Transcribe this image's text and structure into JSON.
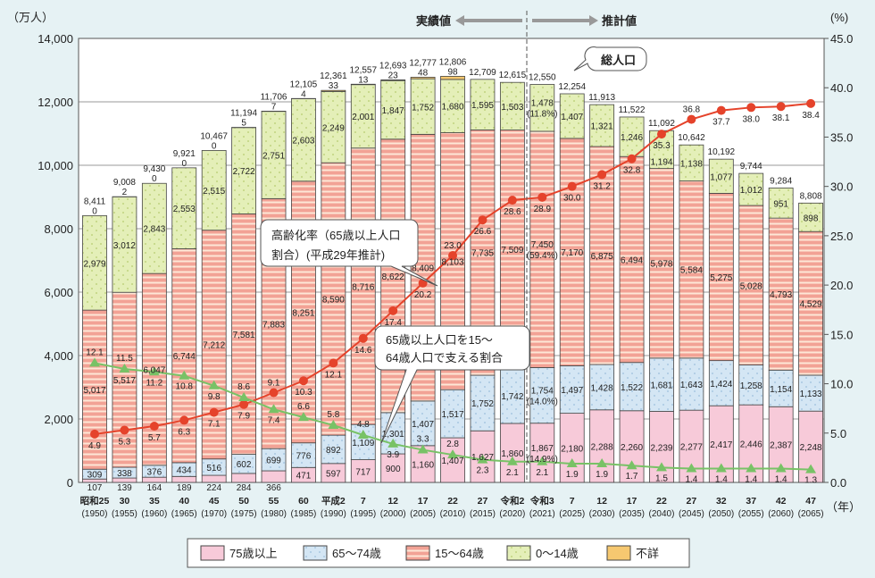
{
  "chart_data": {
    "type": "bar",
    "stacked": true,
    "left_axis": {
      "unit_label": "（万人）",
      "ylim": [
        0,
        14000
      ],
      "ticks": [
        "0",
        "2,000",
        "4,000",
        "6,000",
        "8,000",
        "10,000",
        "12,000",
        "14,000"
      ]
    },
    "right_axis": {
      "unit_label": "(%)",
      "ylim": [
        0,
        45
      ],
      "ticks": [
        "0.0",
        "5.0",
        "10.0",
        "15.0",
        "20.0",
        "25.0",
        "30.0",
        "35.0",
        "40.0",
        "45.0"
      ]
    },
    "x_unit_label": "（年）",
    "categories": [
      "昭和25",
      "30",
      "35",
      "40",
      "45",
      "50",
      "55",
      "60",
      "平成2",
      "7",
      "12",
      "17",
      "22",
      "27",
      "令和2",
      "令和3",
      "7",
      "12",
      "17",
      "22",
      "27",
      "32",
      "37",
      "42",
      "47"
    ],
    "categories_western": [
      "(1950)",
      "(1955)",
      "(1960)",
      "(1965)",
      "(1970)",
      "(1975)",
      "(1980)",
      "(1985)",
      "(1990)",
      "(1995)",
      "(2000)",
      "(2005)",
      "(2010)",
      "(2015)",
      "(2020)",
      "(2021)",
      "(2025)",
      "(2030)",
      "(2035)",
      "(2040)",
      "(2045)",
      "(2050)",
      "(2055)",
      "(2060)",
      "(2065)"
    ],
    "totals": [
      "8,411",
      "9,008",
      "9,430",
      "9,921",
      "10,467",
      "11,194",
      "11,706",
      "12,105",
      "12,361",
      "12,557",
      "12,693",
      "12,777",
      "12,806",
      "12,709",
      "12,615",
      "12,550",
      "12,254",
      "11,913",
      "11,522",
      "11,092",
      "10,642",
      "10,192",
      "9,744",
      "9,284",
      "8,808"
    ],
    "series": [
      {
        "name": "75歳以上",
        "color": "#f7cad9",
        "values": [
          107,
          139,
          164,
          189,
          224,
          284,
          366,
          471,
          597,
          717,
          900,
          1160,
          1407,
          1627,
          1860,
          1867,
          2180,
          2288,
          2260,
          2239,
          2277,
          2417,
          2446,
          2387,
          2248
        ]
      },
      {
        "name": "65〜74歳",
        "color": "#d4e6f4",
        "values": [
          309,
          338,
          376,
          434,
          516,
          602,
          699,
          776,
          892,
          1109,
          1301,
          1407,
          1517,
          1752,
          1742,
          1754,
          1497,
          1428,
          1522,
          1681,
          1643,
          1424,
          1258,
          1154,
          1133
        ]
      },
      {
        "name": "15〜64歳",
        "color": "#f2a295",
        "values": [
          5017,
          5517,
          6047,
          6744,
          7212,
          7581,
          7883,
          8251,
          8590,
          8716,
          8622,
          8409,
          8103,
          7735,
          7509,
          7450,
          7170,
          6875,
          6494,
          5978,
          5584,
          5275,
          5028,
          4793,
          4529
        ]
      },
      {
        "name": "0〜14歳",
        "color": "#e4efb8",
        "values": [
          2979,
          3012,
          2843,
          2553,
          2515,
          2722,
          2751,
          2603,
          2249,
          2001,
          1847,
          1752,
          1680,
          1595,
          1503,
          1478,
          1407,
          1321,
          1246,
          1194,
          1138,
          1077,
          1012,
          951,
          898
        ]
      },
      {
        "name": "不詳",
        "color": "#f6c870",
        "values": [
          0,
          2,
          0,
          0,
          0,
          5,
          7,
          4,
          33,
          13,
          23,
          48,
          98,
          null,
          null,
          null,
          null,
          null,
          null,
          null,
          null,
          null,
          null,
          null,
          null
        ]
      }
    ],
    "lines": [
      {
        "name": "高齢化率（65歳以上人口割合）(平成29年推計)",
        "color": "#e5432b",
        "axis": "right",
        "values": [
          4.9,
          5.3,
          5.7,
          6.3,
          7.1,
          7.9,
          9.1,
          10.3,
          12.1,
          14.6,
          17.4,
          20.2,
          23.0,
          26.6,
          28.6,
          28.9,
          30.0,
          31.2,
          32.8,
          35.3,
          36.8,
          37.7,
          38.0,
          38.1,
          38.4
        ]
      },
      {
        "name": "65歳以上人口を15〜64歳人口で支える割合",
        "color": "#78c266",
        "axis": "right",
        "values": [
          12.1,
          11.5,
          11.2,
          10.8,
          9.8,
          8.6,
          7.4,
          6.6,
          5.8,
          4.8,
          3.9,
          3.3,
          2.8,
          2.3,
          2.1,
          2.1,
          1.9,
          1.9,
          1.7,
          1.5,
          1.4,
          1.4,
          1.4,
          1.4,
          1.3
        ]
      }
    ],
    "annotations_2021": {
      "age0_14": "(11.8%)",
      "age15_64": "(59.4%)",
      "age65_74": "(14.0%)",
      "age75": "(14.9%)"
    },
    "callouts": {
      "aging_rate_line1": "高齢化率（65歳以上人口",
      "aging_rate_line2": "割合）(平成29年推計)",
      "support_line1": "65歳以上人口を15〜",
      "support_line2": "64歳人口で支える割合",
      "total_population": "総人口"
    },
    "period_labels": {
      "actual": "実績値",
      "estimate": "推計値"
    },
    "legend": {
      "position": "bottom",
      "items": [
        "75歳以上",
        "65〜74歳",
        "15〜64歳",
        "0〜14歳",
        "不詳"
      ]
    },
    "grid": true
  }
}
